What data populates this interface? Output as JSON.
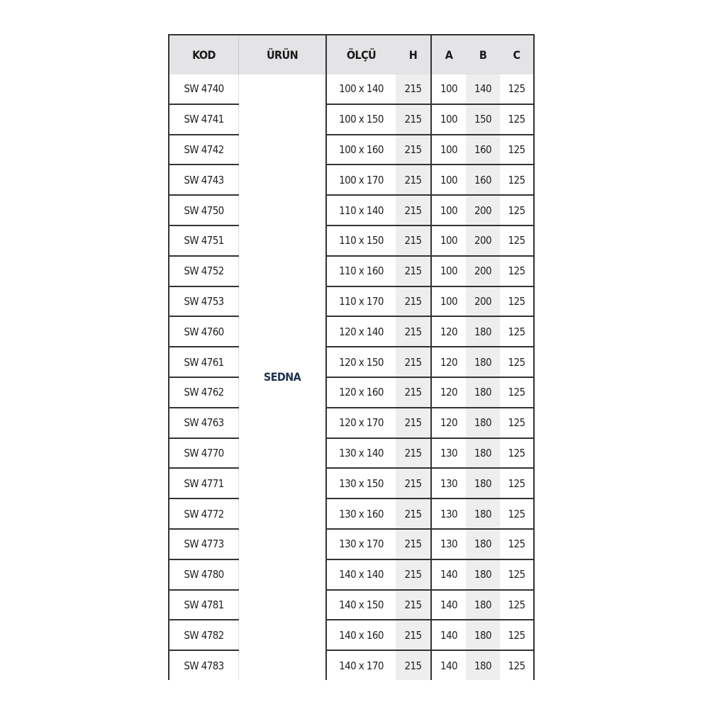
{
  "headers": {
    "kod": "KOD",
    "urun": "ÜRÜN",
    "olcu": "ÖLÇÜ",
    "h": "H",
    "a": "A",
    "b": "B",
    "c": "C"
  },
  "product": "SEDNA",
  "rows": [
    {
      "kod": "SW 4740",
      "olcu": "100 x 140",
      "h": "215",
      "a": "100",
      "b": "140",
      "c": "125"
    },
    {
      "kod": "SW 4741",
      "olcu": "100 x 150",
      "h": "215",
      "a": "100",
      "b": "150",
      "c": "125"
    },
    {
      "kod": "SW 4742",
      "olcu": "100 x 160",
      "h": "215",
      "a": "100",
      "b": "160",
      "c": "125"
    },
    {
      "kod": "SW 4743",
      "olcu": "100 x 170",
      "h": "215",
      "a": "100",
      "b": "160",
      "c": "125"
    },
    {
      "kod": "SW 4750",
      "olcu": "110 x 140",
      "h": "215",
      "a": "100",
      "b": "200",
      "c": "125"
    },
    {
      "kod": "SW 4751",
      "olcu": "110 x 150",
      "h": "215",
      "a": "100",
      "b": "200",
      "c": "125"
    },
    {
      "kod": "SW 4752",
      "olcu": "110 x 160",
      "h": "215",
      "a": "100",
      "b": "200",
      "c": "125"
    },
    {
      "kod": "SW 4753",
      "olcu": "110 x 170",
      "h": "215",
      "a": "100",
      "b": "200",
      "c": "125"
    },
    {
      "kod": "SW 4760",
      "olcu": "120 x 140",
      "h": "215",
      "a": "120",
      "b": "180",
      "c": "125"
    },
    {
      "kod": "SW 4761",
      "olcu": "120 x 150",
      "h": "215",
      "a": "120",
      "b": "180",
      "c": "125"
    },
    {
      "kod": "SW 4762",
      "olcu": "120 x 160",
      "h": "215",
      "a": "120",
      "b": "180",
      "c": "125"
    },
    {
      "kod": "SW 4763",
      "olcu": "120 x 170",
      "h": "215",
      "a": "120",
      "b": "180",
      "c": "125"
    },
    {
      "kod": "SW 4770",
      "olcu": "130 x 140",
      "h": "215",
      "a": "130",
      "b": "180",
      "c": "125"
    },
    {
      "kod": "SW 4771",
      "olcu": "130 x 150",
      "h": "215",
      "a": "130",
      "b": "180",
      "c": "125"
    },
    {
      "kod": "SW 4772",
      "olcu": "130 x 160",
      "h": "215",
      "a": "130",
      "b": "180",
      "c": "125"
    },
    {
      "kod": "SW 4773",
      "olcu": "130 x 170",
      "h": "215",
      "a": "130",
      "b": "180",
      "c": "125"
    },
    {
      "kod": "SW 4780",
      "olcu": "140 x 140",
      "h": "215",
      "a": "140",
      "b": "180",
      "c": "125"
    },
    {
      "kod": "SW 4781",
      "olcu": "140 x 150",
      "h": "215",
      "a": "140",
      "b": "180",
      "c": "125"
    },
    {
      "kod": "SW 4782",
      "olcu": "140 x 160",
      "h": "215",
      "a": "140",
      "b": "180",
      "c": "125"
    },
    {
      "kod": "SW 4783",
      "olcu": "140 x 170",
      "h": "215",
      "a": "140",
      "b": "180",
      "c": "125"
    }
  ]
}
